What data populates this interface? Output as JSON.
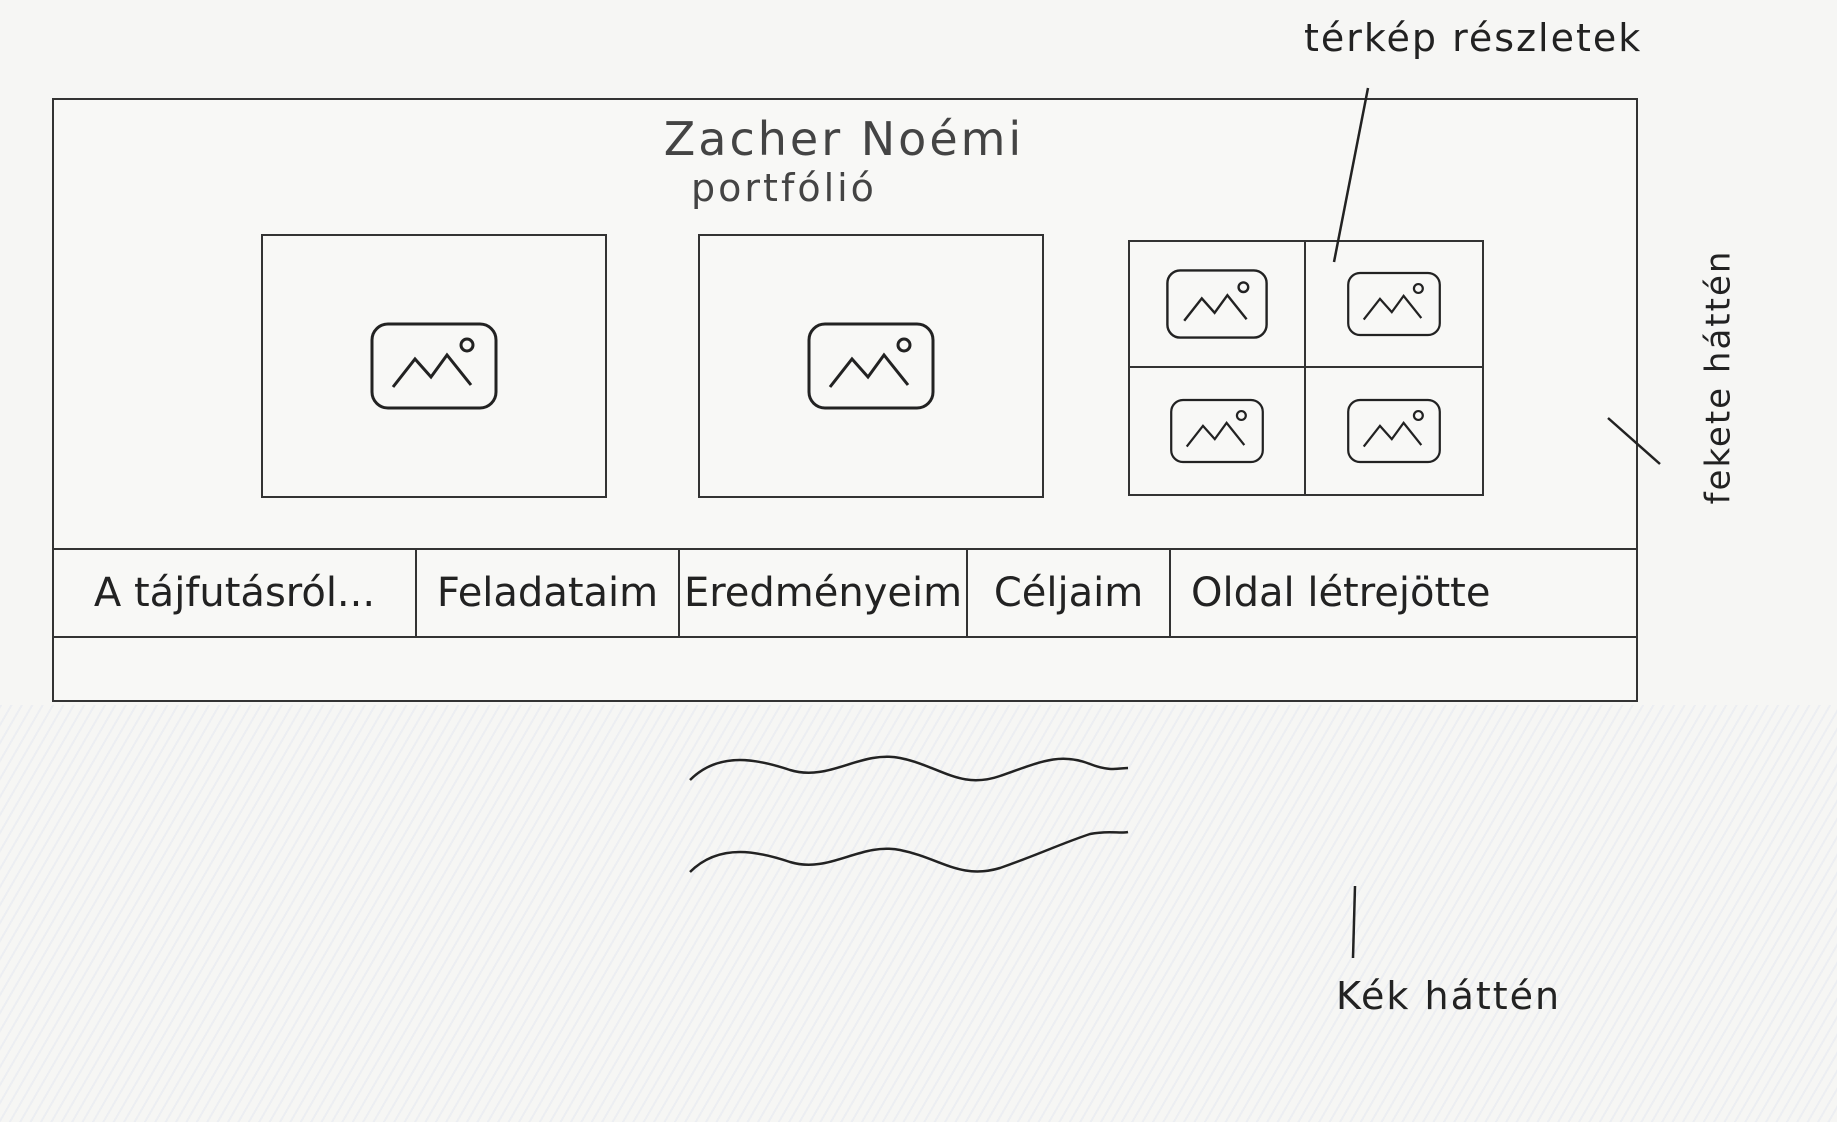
{
  "header": {
    "title": "Zacher Noémi",
    "subtitle": "portfólió"
  },
  "images": {
    "icon": "image-placeholder-icon",
    "count": 6
  },
  "nav": {
    "items": [
      {
        "label": "A tájfutásról..."
      },
      {
        "label": "Feladataim"
      },
      {
        "label": "Eredményeim"
      },
      {
        "label": "Céljaim"
      },
      {
        "label": "Oldal létrejötte"
      }
    ]
  },
  "annotations": {
    "map_details": "térkép részletek",
    "black_background": "fekete háttén",
    "blue_background": "Kék háttén"
  },
  "colors": {
    "ink": "#333333",
    "paper": "#f6f6f4",
    "blue_hatch": "#96aadc"
  }
}
